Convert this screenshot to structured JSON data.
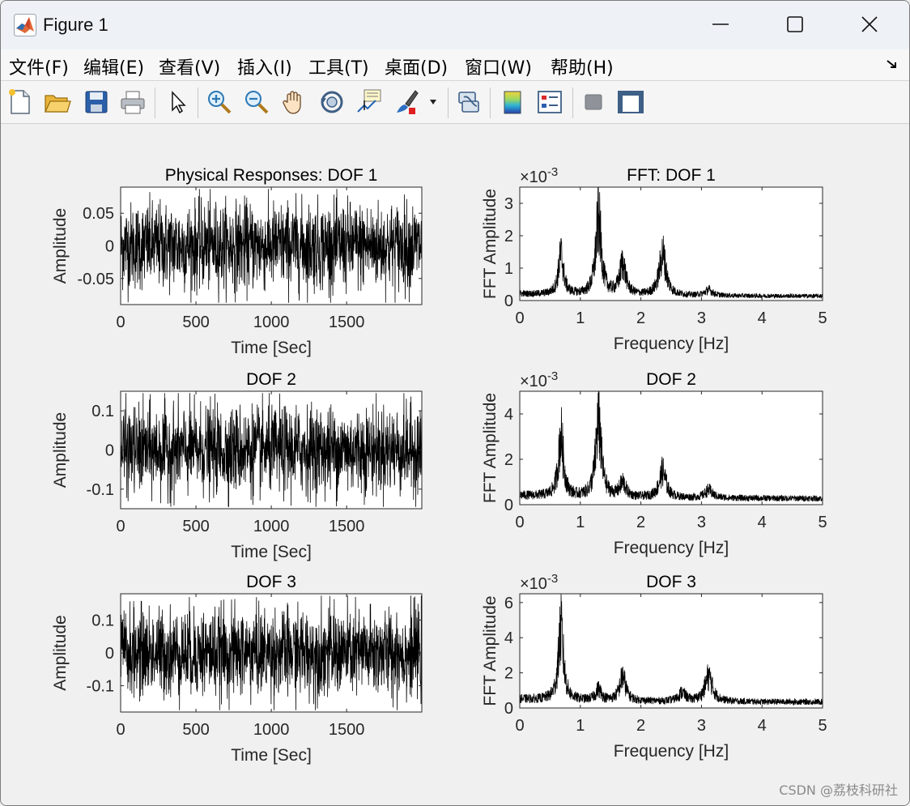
{
  "window": {
    "title": "Figure 1"
  },
  "menu": {
    "items": [
      "文件(F)",
      "编辑(E)",
      "查看(V)",
      "插入(I)",
      "工具(T)",
      "桌面(D)",
      "窗口(W)",
      "帮助(H)"
    ]
  },
  "toolbar": {
    "icons": [
      "new-figure-icon",
      "open-icon",
      "save-icon",
      "print-icon",
      "pointer-icon",
      "zoom-in-icon",
      "zoom-out-icon",
      "pan-icon",
      "rotate-3d-icon",
      "data-cursor-icon",
      "brush-icon",
      "link-plot-icon",
      "colorbar-icon",
      "legend-icon",
      "hide-plot-tools-icon",
      "show-plot-tools-icon"
    ]
  },
  "watermark": "CSDN @荔枝科研社",
  "chart_data": [
    {
      "type": "line",
      "title": "Physical Responses: DOF 1",
      "xlabel": "Time [Sec]",
      "ylabel": "Amplitude",
      "xlim": [
        0,
        1999
      ],
      "ylim": [
        -0.09,
        0.09
      ],
      "xticks": [
        "0",
        "500",
        "1000",
        "1500"
      ],
      "xtick_values": [
        0,
        500,
        1000,
        1500
      ],
      "yticks": [
        "-0.05",
        "0",
        "0.05"
      ],
      "ytick_values": [
        -0.05,
        0,
        0.05
      ],
      "exponent": "",
      "series": [
        {
          "style": "random-noise",
          "amplitude": 0.06,
          "color": "#000000"
        }
      ]
    },
    {
      "type": "line",
      "title": "FFT: DOF 1",
      "xlabel": "Frequency [Hz]",
      "ylabel": "FFT Amplitude",
      "xlim": [
        0,
        5
      ],
      "ylim": [
        0,
        0.0035
      ],
      "xticks": [
        "0",
        "1",
        "2",
        "3",
        "4",
        "5"
      ],
      "xtick_values": [
        0,
        1,
        2,
        3,
        4,
        5
      ],
      "yticks": [
        "0",
        "1",
        "2",
        "3"
      ],
      "ytick_values": [
        0,
        0.001,
        0.002,
        0.003
      ],
      "exponent": "×10",
      "exponent_power": "-3",
      "series": [
        {
          "style": "spectrum",
          "baseline": 0.0002,
          "color": "#000000",
          "peaks": [
            {
              "freq": 0.68,
              "amp": 0.0018
            },
            {
              "freq": 1.3,
              "amp": 0.0034
            },
            {
              "freq": 1.7,
              "amp": 0.0014
            },
            {
              "freq": 2.36,
              "amp": 0.0019
            },
            {
              "freq": 3.12,
              "amp": 0.00025
            }
          ]
        }
      ]
    },
    {
      "type": "line",
      "title": "DOF 2",
      "xlabel": "Time [Sec]",
      "ylabel": "Amplitude",
      "xlim": [
        0,
        1999
      ],
      "ylim": [
        -0.15,
        0.15
      ],
      "xticks": [
        "0",
        "500",
        "1000",
        "1500"
      ],
      "xtick_values": [
        0,
        500,
        1000,
        1500
      ],
      "yticks": [
        "-0.1",
        "0",
        "0.1"
      ],
      "ytick_values": [
        -0.1,
        0,
        0.1
      ],
      "exponent": "",
      "series": [
        {
          "style": "random-noise",
          "amplitude": 0.1,
          "color": "#000000"
        }
      ]
    },
    {
      "type": "line",
      "title": "DOF 2",
      "xlabel": "Frequency [Hz]",
      "ylabel": "FFT Amplitude",
      "xlim": [
        0,
        5
      ],
      "ylim": [
        0,
        0.005
      ],
      "xticks": [
        "0",
        "1",
        "2",
        "3",
        "4",
        "5"
      ],
      "xtick_values": [
        0,
        1,
        2,
        3,
        4,
        5
      ],
      "yticks": [
        "0",
        "2",
        "4"
      ],
      "ytick_values": [
        0,
        0.002,
        0.004
      ],
      "exponent": "×10",
      "exponent_power": "-3",
      "series": [
        {
          "style": "spectrum",
          "baseline": 0.0004,
          "color": "#000000",
          "peaks": [
            {
              "freq": 0.68,
              "amp": 0.0039
            },
            {
              "freq": 1.3,
              "amp": 0.0049
            },
            {
              "freq": 1.7,
              "amp": 0.0009
            },
            {
              "freq": 2.36,
              "amp": 0.0017
            },
            {
              "freq": 3.12,
              "amp": 0.0005
            }
          ]
        }
      ]
    },
    {
      "type": "line",
      "title": "DOF 3",
      "xlabel": "Time [Sec]",
      "ylabel": "Amplitude",
      "xlim": [
        0,
        1999
      ],
      "ylim": [
        -0.18,
        0.18
      ],
      "xticks": [
        "0",
        "500",
        "1000",
        "1500"
      ],
      "xtick_values": [
        0,
        500,
        1000,
        1500
      ],
      "yticks": [
        "-0.1",
        "0",
        "0.1"
      ],
      "ytick_values": [
        -0.1,
        0,
        0.1
      ],
      "exponent": "",
      "series": [
        {
          "style": "random-noise",
          "amplitude": 0.12,
          "color": "#000000"
        }
      ]
    },
    {
      "type": "line",
      "title": "DOF 3",
      "xlabel": "Frequency [Hz]",
      "ylabel": "FFT Amplitude",
      "xlim": [
        0,
        5
      ],
      "ylim": [
        0,
        0.0065
      ],
      "xticks": [
        "0",
        "1",
        "2",
        "3",
        "4",
        "5"
      ],
      "xtick_values": [
        0,
        1,
        2,
        3,
        4,
        5
      ],
      "yticks": [
        "0",
        "2",
        "4",
        "6"
      ],
      "ytick_values": [
        0,
        0.002,
        0.004,
        0.006
      ],
      "exponent": "×10",
      "exponent_power": "-3",
      "series": [
        {
          "style": "spectrum",
          "baseline": 0.0005,
          "color": "#000000",
          "peaks": [
            {
              "freq": 0.68,
              "amp": 0.006
            },
            {
              "freq": 1.3,
              "amp": 0.0009
            },
            {
              "freq": 1.7,
              "amp": 0.002
            },
            {
              "freq": 2.68,
              "amp": 0.0007
            },
            {
              "freq": 3.12,
              "amp": 0.0021
            }
          ]
        }
      ]
    }
  ]
}
